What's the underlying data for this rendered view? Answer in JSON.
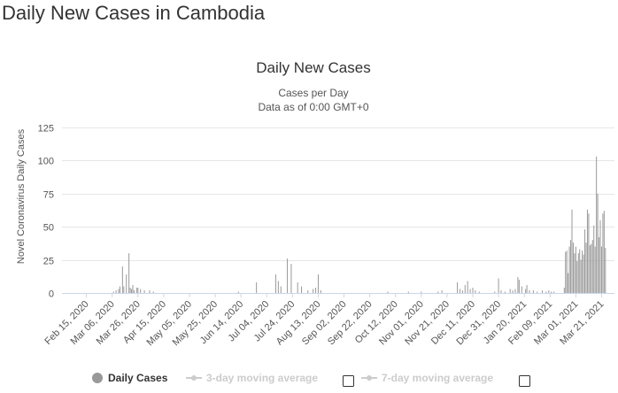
{
  "page": {
    "title": "Daily New Cases in Cambodia"
  },
  "chart_data": {
    "type": "bar",
    "title": "Daily New Cases",
    "subtitle_line1": "Cases per Day",
    "subtitle_line2": "Data as of 0:00 GMT+0",
    "ylabel": "Novel Coronavirus Daily Cases",
    "xlabel": "",
    "ylim": [
      0,
      125
    ],
    "yticks": [
      0,
      25,
      50,
      75,
      100,
      125
    ],
    "x_range": [
      "2020-01-27",
      "2021-03-31"
    ],
    "x_tick_labels": [
      {
        "date": "2020-02-15",
        "label": "Feb 15, 2020"
      },
      {
        "date": "2020-03-06",
        "label": "Mar 06, 2020"
      },
      {
        "date": "2020-03-26",
        "label": "Mar 26, 2020"
      },
      {
        "date": "2020-04-15",
        "label": "Apr 15, 2020"
      },
      {
        "date": "2020-05-05",
        "label": "May 05, 2020"
      },
      {
        "date": "2020-05-25",
        "label": "May 25, 2020"
      },
      {
        "date": "2020-06-14",
        "label": "Jun 14, 2020"
      },
      {
        "date": "2020-07-04",
        "label": "Jul 04, 2020"
      },
      {
        "date": "2020-07-24",
        "label": "Jul 24, 2020"
      },
      {
        "date": "2020-08-13",
        "label": "Aug 13, 2020"
      },
      {
        "date": "2020-09-02",
        "label": "Sep 02, 2020"
      },
      {
        "date": "2020-09-22",
        "label": "Sep 22, 2020"
      },
      {
        "date": "2020-10-12",
        "label": "Oct 12, 2020"
      },
      {
        "date": "2020-11-01",
        "label": "Nov 01, 2020"
      },
      {
        "date": "2020-11-21",
        "label": "Nov 21, 2020"
      },
      {
        "date": "2020-12-11",
        "label": "Dec 11, 2020"
      },
      {
        "date": "2020-12-31",
        "label": "Dec 31, 2020"
      },
      {
        "date": "2021-01-20",
        "label": "Jan 20, 2021"
      },
      {
        "date": "2021-02-09",
        "label": "Feb 09, 2021"
      },
      {
        "date": "2021-03-01",
        "label": "Mar 01, 2021"
      },
      {
        "date": "2021-03-21",
        "label": "Mar 21, 2021"
      }
    ],
    "grid": true,
    "bar_color": "#999999",
    "series": [
      {
        "name": "Daily Cases",
        "points": [
          [
            "2020-03-07",
            1
          ],
          [
            "2020-03-09",
            2
          ],
          [
            "2020-03-11",
            3
          ],
          [
            "2020-03-12",
            5
          ],
          [
            "2020-03-14",
            20
          ],
          [
            "2020-03-15",
            5
          ],
          [
            "2020-03-17",
            14
          ],
          [
            "2020-03-19",
            30
          ],
          [
            "2020-03-20",
            4
          ],
          [
            "2020-03-21",
            3
          ],
          [
            "2020-03-22",
            6
          ],
          [
            "2020-03-23",
            2
          ],
          [
            "2020-03-25",
            4
          ],
          [
            "2020-03-26",
            4
          ],
          [
            "2020-03-28",
            3
          ],
          [
            "2020-03-31",
            2
          ],
          [
            "2020-04-04",
            2
          ],
          [
            "2020-04-07",
            1
          ],
          [
            "2020-06-12",
            1
          ],
          [
            "2020-06-26",
            8
          ],
          [
            "2020-07-11",
            14
          ],
          [
            "2020-07-13",
            9
          ],
          [
            "2020-07-15",
            5
          ],
          [
            "2020-07-20",
            26
          ],
          [
            "2020-07-23",
            22
          ],
          [
            "2020-07-28",
            8
          ],
          [
            "2020-07-31",
            5
          ],
          [
            "2020-08-05",
            2
          ],
          [
            "2020-08-09",
            3
          ],
          [
            "2020-08-11",
            4
          ],
          [
            "2020-08-13",
            14
          ],
          [
            "2020-08-15",
            2
          ],
          [
            "2020-10-06",
            1
          ],
          [
            "2020-10-22",
            1
          ],
          [
            "2020-11-01",
            1
          ],
          [
            "2020-11-14",
            1
          ],
          [
            "2020-11-17",
            2
          ],
          [
            "2020-11-29",
            8
          ],
          [
            "2020-12-01",
            3
          ],
          [
            "2020-12-03",
            2
          ],
          [
            "2020-12-05",
            6
          ],
          [
            "2020-12-07",
            9
          ],
          [
            "2020-12-09",
            3
          ],
          [
            "2020-12-11",
            4
          ],
          [
            "2020-12-13",
            2
          ],
          [
            "2020-12-16",
            1
          ],
          [
            "2020-12-28",
            1
          ],
          [
            "2020-12-31",
            11
          ],
          [
            "2021-01-02",
            2
          ],
          [
            "2021-01-05",
            1
          ],
          [
            "2021-01-09",
            3
          ],
          [
            "2021-01-11",
            2
          ],
          [
            "2021-01-13",
            3
          ],
          [
            "2021-01-15",
            12
          ],
          [
            "2021-01-16",
            10
          ],
          [
            "2021-01-18",
            5
          ],
          [
            "2021-01-21",
            3
          ],
          [
            "2021-01-22",
            6
          ],
          [
            "2021-01-24",
            2
          ],
          [
            "2021-01-27",
            2
          ],
          [
            "2021-01-30",
            1
          ],
          [
            "2021-02-03",
            2
          ],
          [
            "2021-02-06",
            1
          ],
          [
            "2021-02-08",
            2
          ],
          [
            "2021-02-10",
            1
          ],
          [
            "2021-02-12",
            1
          ],
          [
            "2021-02-20",
            4
          ],
          [
            "2021-02-21",
            31
          ],
          [
            "2021-02-22",
            32
          ],
          [
            "2021-02-23",
            15
          ],
          [
            "2021-02-24",
            35
          ],
          [
            "2021-02-25",
            40
          ],
          [
            "2021-02-26",
            63
          ],
          [
            "2021-02-27",
            38
          ],
          [
            "2021-02-28",
            30
          ],
          [
            "2021-03-01",
            35
          ],
          [
            "2021-03-02",
            24
          ],
          [
            "2021-03-03",
            30
          ],
          [
            "2021-03-04",
            33
          ],
          [
            "2021-03-05",
            25
          ],
          [
            "2021-03-06",
            32
          ],
          [
            "2021-03-07",
            29
          ],
          [
            "2021-03-08",
            48
          ],
          [
            "2021-03-09",
            38
          ],
          [
            "2021-03-10",
            63
          ],
          [
            "2021-03-11",
            60
          ],
          [
            "2021-03-12",
            36
          ],
          [
            "2021-03-13",
            37
          ],
          [
            "2021-03-14",
            40
          ],
          [
            "2021-03-15",
            51
          ],
          [
            "2021-03-16",
            35
          ],
          [
            "2021-03-17",
            103
          ],
          [
            "2021-03-18",
            75
          ],
          [
            "2021-03-19",
            42
          ],
          [
            "2021-03-20",
            55
          ],
          [
            "2021-03-21",
            35
          ],
          [
            "2021-03-22",
            60
          ],
          [
            "2021-03-23",
            62
          ],
          [
            "2021-03-24",
            34
          ]
        ]
      }
    ],
    "legend": {
      "placement": "bottom-center",
      "items": [
        {
          "label": "Daily Cases",
          "active": true,
          "color": "#999999"
        },
        {
          "label": "3-day moving average",
          "active": false,
          "color": "#cccccc"
        },
        {
          "label": "7-day moving average",
          "active": false,
          "color": "#cccccc"
        }
      ]
    }
  }
}
